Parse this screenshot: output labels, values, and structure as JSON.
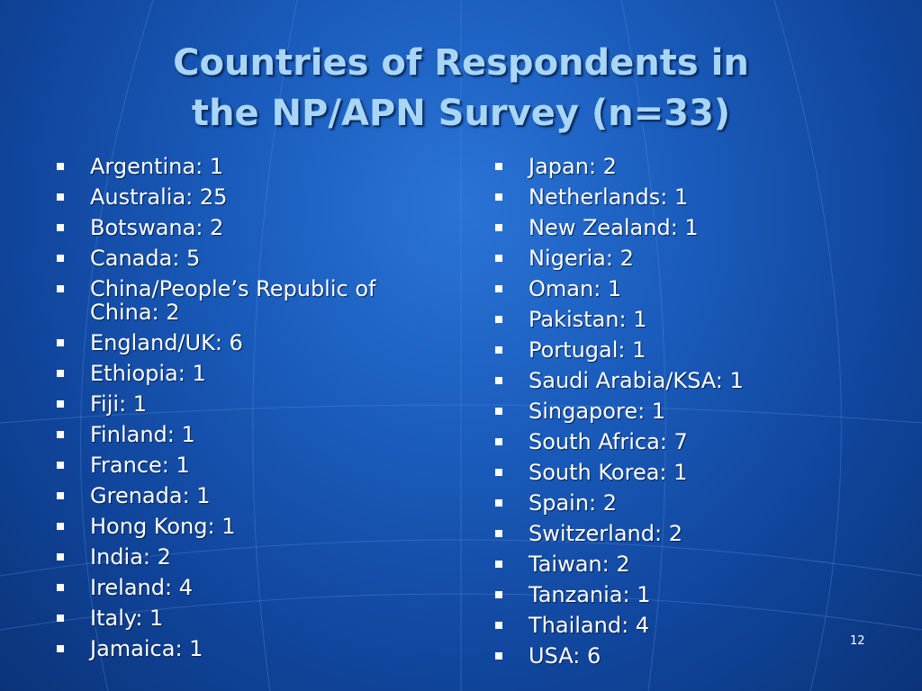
{
  "slide": {
    "title_line1": "Countries of Respondents in",
    "title_line2": "the NP/APN Survey (n=33)",
    "page_number": "12",
    "left_items": [
      "Argentina: 1",
      "Australia: 25",
      "Botswana: 2",
      "Canada: 5",
      "China/People’s Republic of China: 2",
      "England/UK: 6",
      "Ethiopia: 1",
      "Fiji: 1",
      "Finland: 1",
      "France: 1",
      "Grenada: 1",
      "Hong Kong: 1",
      "India: 2",
      "Ireland: 4",
      "Italy: 1",
      "Jamaica: 1"
    ],
    "right_items": [
      "Japan: 2",
      "Netherlands: 1",
      "New Zealand: 1",
      "Nigeria: 2",
      "Oman: 1",
      "Pakistan: 1",
      "Portugal: 1",
      "Saudi Arabia/KSA: 1",
      "Singapore: 1",
      "South Africa: 7",
      "South Korea: 1",
      "Spain: 2",
      "Switzerland: 2",
      "Taiwan: 2",
      "Tanzania: 1",
      "Thailand: 4",
      "USA: 6"
    ]
  },
  "colors": {
    "title": "#a9d6f7",
    "text": "#ffffff",
    "background": "#1a5cbc"
  }
}
